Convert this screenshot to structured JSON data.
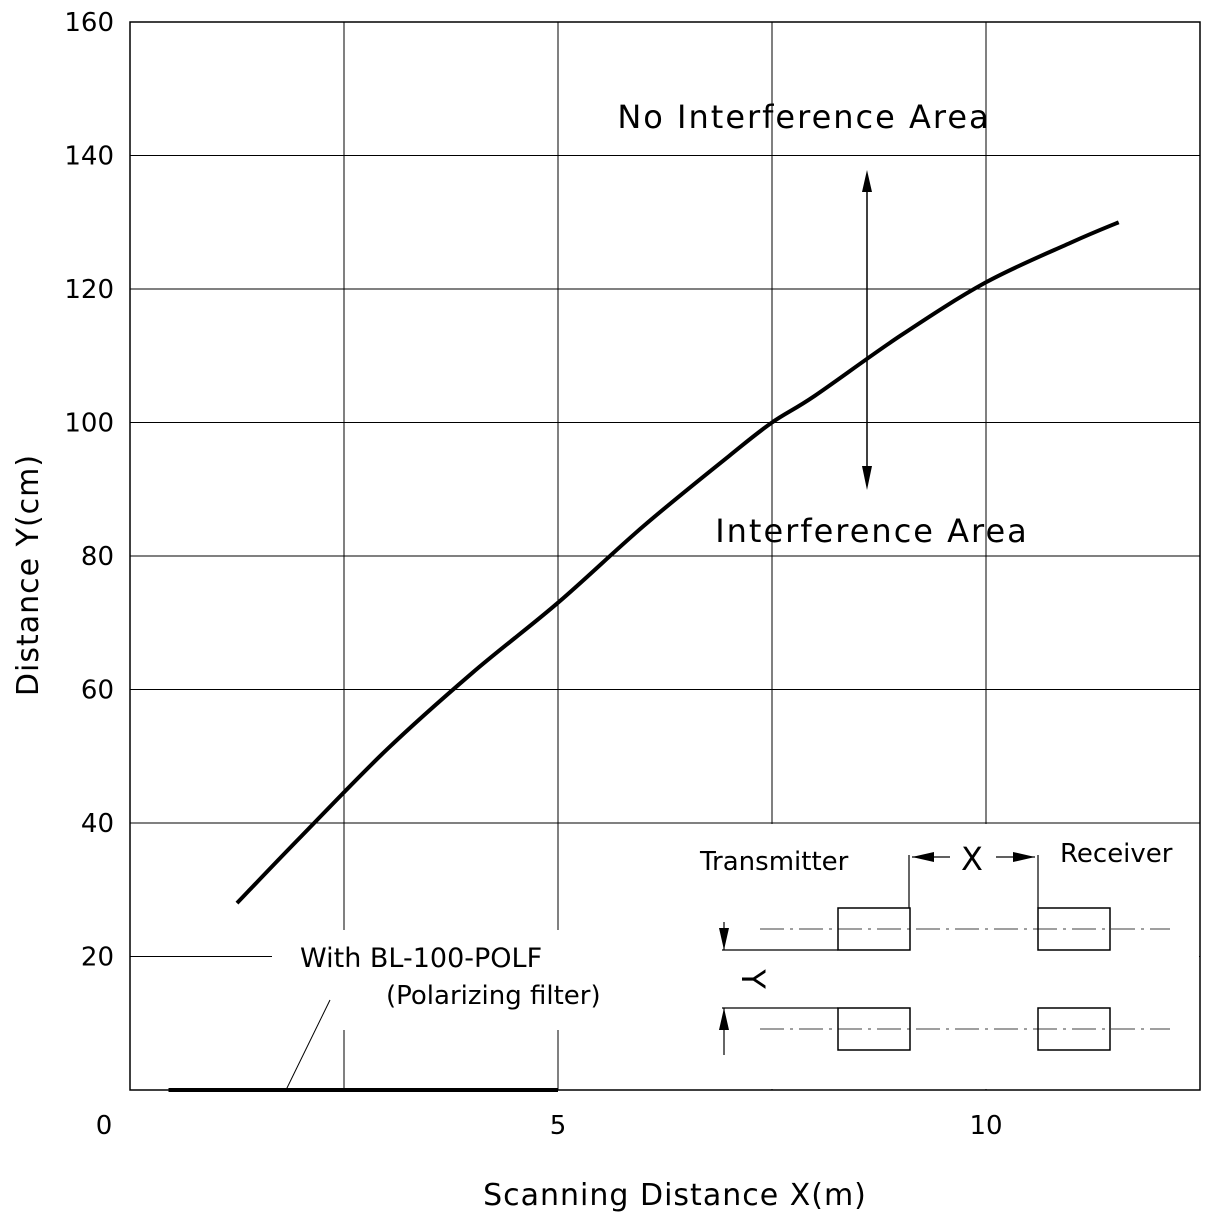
{
  "chart_data": {
    "type": "line",
    "xlabel": "Scanning Distance    X(m)",
    "ylabel": "Distance    Y(cm)",
    "xlim": [
      0,
      12.5
    ],
    "ylim": [
      0,
      160
    ],
    "x_ticks": [
      0,
      5,
      10
    ],
    "y_ticks": [
      20,
      40,
      60,
      80,
      100,
      120,
      140,
      160
    ],
    "x_tick_labels": [
      "0",
      "5",
      "10"
    ],
    "y_tick_labels": [
      "20",
      "40",
      "60",
      "80",
      "100",
      "120",
      "140",
      "160"
    ],
    "grid": true,
    "series": [
      {
        "name": "",
        "x": [
          1.25,
          2.0,
          3.0,
          4.0,
          5.0,
          6.0,
          7.0,
          7.5,
          8.0,
          9.0,
          10.0,
          11.0,
          11.55
        ],
        "y": [
          28,
          38,
          51,
          62.5,
          73,
          84.5,
          95,
          100,
          104,
          113,
          121,
          127,
          130
        ]
      },
      {
        "name": "With BL-100-POLF",
        "x": [
          0.45,
          5.0
        ],
        "y": [
          0,
          0
        ]
      }
    ],
    "annotations": {
      "upper": "No Interference Area",
      "lower": "Interference Area",
      "filter_name": "With BL-100-POLF",
      "filter_desc": "(Polarizing filter)"
    },
    "inset": {
      "transmitter": "Transmitter",
      "receiver": "Receiver",
      "x_label": "X",
      "y_label": "Y"
    }
  }
}
